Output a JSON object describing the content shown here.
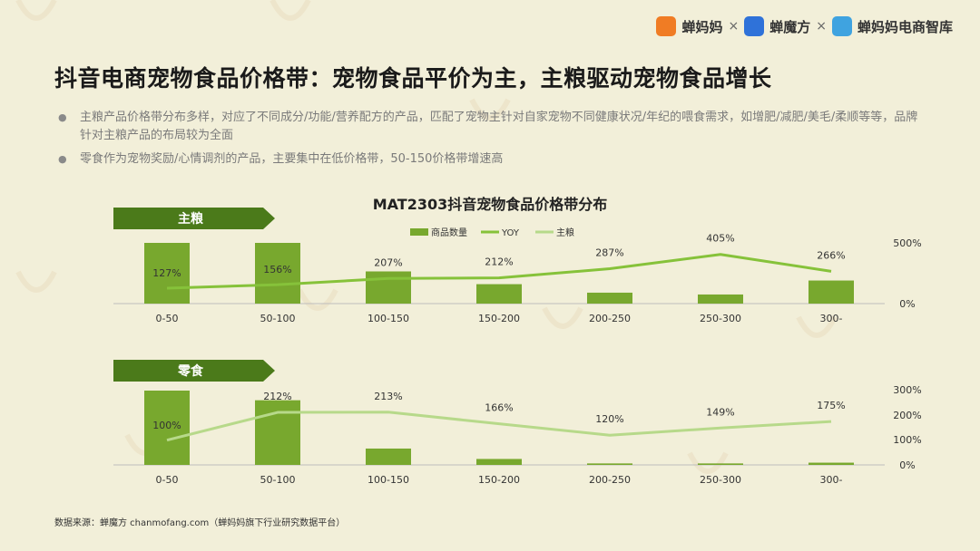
{
  "header": {
    "brands": [
      "蝉妈妈",
      "蝉魔方",
      "蝉妈妈电商智库"
    ],
    "separator": "×"
  },
  "title": "抖音电商宠物食品价格带：宠物食品平价为主，主粮驱动宠物食品增长",
  "bullets": [
    "主粮产品价格带分布多样，对应了不同成分/功能/营养配方的产品，匹配了宠物主针对自家宠物不同健康状况/年纪的喂食需求，如增肥/减肥/美毛/柔顺等等，品牌针对主粮产品的布局较为全面",
    "零食作为宠物奖励/心情调剂的产品，主要集中在低价格带，50-150价格带增速高"
  ],
  "source": "数据来源：蝉魔方 chanmofang.com（蝉妈妈旗下行业研究数据平台）",
  "colors": {
    "bar": "#78a82e",
    "yoy_line": "#86c23a",
    "zhuliang_line": "#b7d98a",
    "tag": "#4b7a1a",
    "axis": "#bdbdbd"
  },
  "chart_data": {
    "title": "MAT2303抖音宠物食品价格带分布",
    "type": "bar",
    "legend": [
      "商品数量",
      "YOY",
      "主粮"
    ],
    "legend_position": "top",
    "categories": [
      "0-50",
      "50-100",
      "100-150",
      "150-200",
      "200-250",
      "250-300",
      "300-"
    ],
    "panels": [
      {
        "label": "主粮",
        "bar_values": [
          100,
          100,
          53,
          32,
          18,
          15,
          38
        ],
        "yoy_values": [
          127,
          156,
          207,
          212,
          287,
          405,
          266
        ],
        "yoy_labels": [
          "127%",
          "156%",
          "207%",
          "212%",
          "287%",
          "405%",
          "266%"
        ],
        "yoy_line_name": "YOY",
        "right_ylim": [
          0,
          500
        ],
        "right_ticks": [
          "500%",
          "0%"
        ],
        "right_tick_values": [
          500,
          0
        ]
      },
      {
        "label": "零食",
        "bar_values": [
          100,
          87,
          22,
          8,
          2,
          2,
          3
        ],
        "yoy_values": [
          100,
          212,
          213,
          166,
          120,
          149,
          175
        ],
        "yoy_labels": [
          "100%",
          "212%",
          "213%",
          "166%",
          "120%",
          "149%",
          "175%"
        ],
        "yoy_line_name": "主粮",
        "right_ylim": [
          0,
          300
        ],
        "right_ticks": [
          "300%",
          "200%",
          "100%",
          "0%"
        ],
        "right_tick_values": [
          300,
          200,
          100,
          0
        ]
      }
    ]
  }
}
